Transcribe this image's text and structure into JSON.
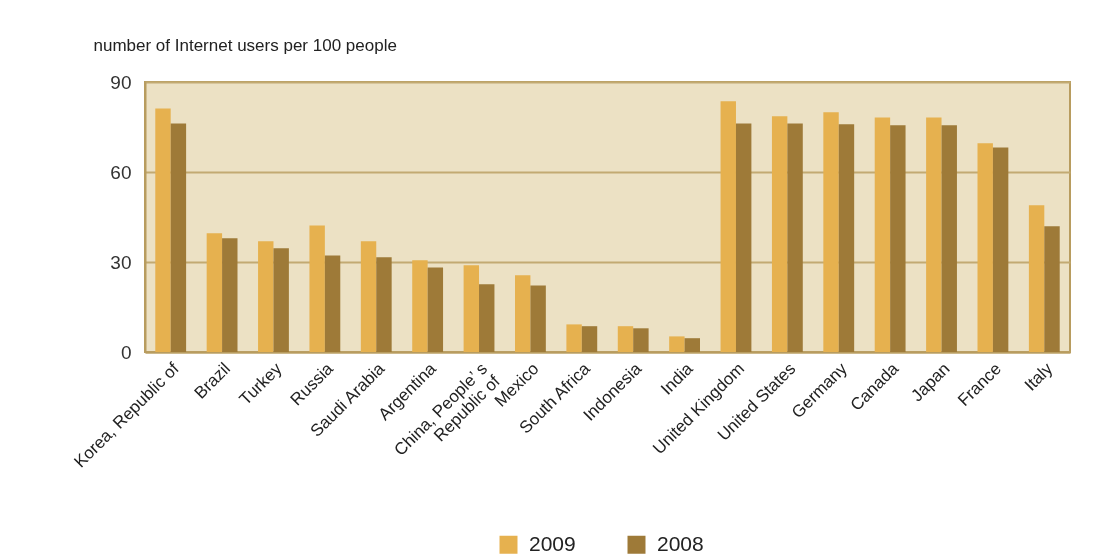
{
  "chart_data": {
    "type": "bar",
    "ylabel": "number of Internet users per 100 people",
    "categories": [
      "Korea, Republic of",
      "Brazil",
      "Turkey",
      "Russia",
      "Saudi Arabia",
      "Argentina",
      "China, People’ s\nRepublic of",
      "Mexico",
      "South Africa",
      "Indonesia",
      "India",
      "United Kingdom",
      "United States",
      "Germany",
      "Canada",
      "Japan",
      "France",
      "Italy"
    ],
    "series": [
      {
        "name": "2009",
        "color": "#e6b14f",
        "values": [
          81.2,
          39.6,
          36.9,
          42.2,
          36.9,
          30.6,
          28.9,
          25.6,
          9.2,
          8.6,
          5.2,
          83.6,
          78.6,
          79.9,
          78.2,
          78.2,
          69.6,
          48.9
        ]
      },
      {
        "name": "2008",
        "color": "#9e7a38",
        "values": [
          76.2,
          37.9,
          34.6,
          32.2,
          31.6,
          28.2,
          22.6,
          22.2,
          8.6,
          7.9,
          4.6,
          76.2,
          76.2,
          75.9,
          75.6,
          75.6,
          68.2,
          41.9
        ]
      }
    ],
    "ylim": [
      0,
      90
    ],
    "yticks": [
      0,
      30,
      60,
      90
    ],
    "grid": "y",
    "legend": "bottom"
  }
}
